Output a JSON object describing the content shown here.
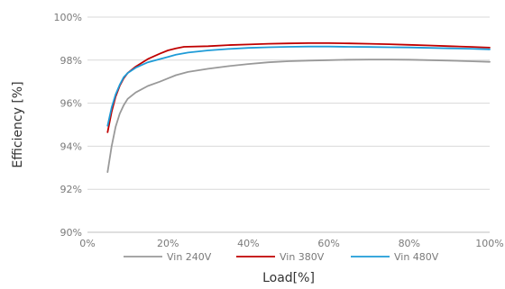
{
  "chart_data": {
    "type": "line",
    "title": "",
    "xlabel": "Load[%]",
    "ylabel": "Efficiency [%]",
    "xlim": [
      0,
      100
    ],
    "ylim": [
      90,
      100
    ],
    "x_ticks": [
      0,
      20,
      40,
      60,
      80,
      100
    ],
    "x_tick_labels": [
      "0%",
      "20%",
      "40%",
      "60%",
      "80%",
      "100%"
    ],
    "y_ticks": [
      90,
      92,
      94,
      96,
      98,
      100
    ],
    "y_tick_labels": [
      "90%",
      "92%",
      "94%",
      "96%",
      "98%",
      "100%"
    ],
    "grid": {
      "horizontal": true,
      "vertical": false
    },
    "legend_position": "bottom",
    "series": [
      {
        "name": "Vin 240V",
        "color": "#999999",
        "x": [
          5,
          6,
          7,
          8,
          9,
          10,
          12,
          15,
          18,
          20,
          22,
          25,
          30,
          35,
          40,
          45,
          50,
          55,
          60,
          65,
          70,
          75,
          80,
          85,
          90,
          95,
          100
        ],
        "y": [
          92.8,
          94.0,
          94.9,
          95.5,
          95.9,
          96.2,
          96.5,
          96.8,
          97.0,
          97.15,
          97.3,
          97.45,
          97.6,
          97.72,
          97.82,
          97.9,
          97.95,
          97.98,
          98.0,
          98.02,
          98.03,
          98.03,
          98.02,
          98.0,
          97.98,
          97.95,
          97.92
        ]
      },
      {
        "name": "Vin 380V",
        "color": "#c00000",
        "x": [
          5,
          6,
          7,
          8,
          9,
          10,
          12,
          15,
          18,
          20,
          22,
          24,
          30,
          35,
          40,
          45,
          50,
          55,
          60,
          65,
          70,
          75,
          80,
          85,
          90,
          95,
          100
        ],
        "y": [
          94.65,
          95.6,
          96.3,
          96.8,
          97.15,
          97.4,
          97.7,
          98.05,
          98.3,
          98.45,
          98.55,
          98.62,
          98.65,
          98.7,
          98.73,
          98.76,
          98.78,
          98.79,
          98.79,
          98.78,
          98.76,
          98.74,
          98.71,
          98.68,
          98.65,
          98.62,
          98.58
        ]
      },
      {
        "name": "Vin 480V",
        "color": "#1e9bd7",
        "x": [
          5,
          6,
          7,
          8,
          9,
          10,
          12,
          15,
          18,
          20,
          22,
          25,
          30,
          35,
          40,
          45,
          50,
          55,
          60,
          65,
          70,
          75,
          80,
          85,
          90,
          95,
          100
        ],
        "y": [
          94.95,
          95.8,
          96.4,
          96.85,
          97.2,
          97.4,
          97.65,
          97.9,
          98.05,
          98.15,
          98.25,
          98.35,
          98.45,
          98.52,
          98.57,
          98.6,
          98.62,
          98.63,
          98.63,
          98.62,
          98.61,
          98.6,
          98.59,
          98.57,
          98.55,
          98.53,
          98.5
        ]
      }
    ]
  }
}
